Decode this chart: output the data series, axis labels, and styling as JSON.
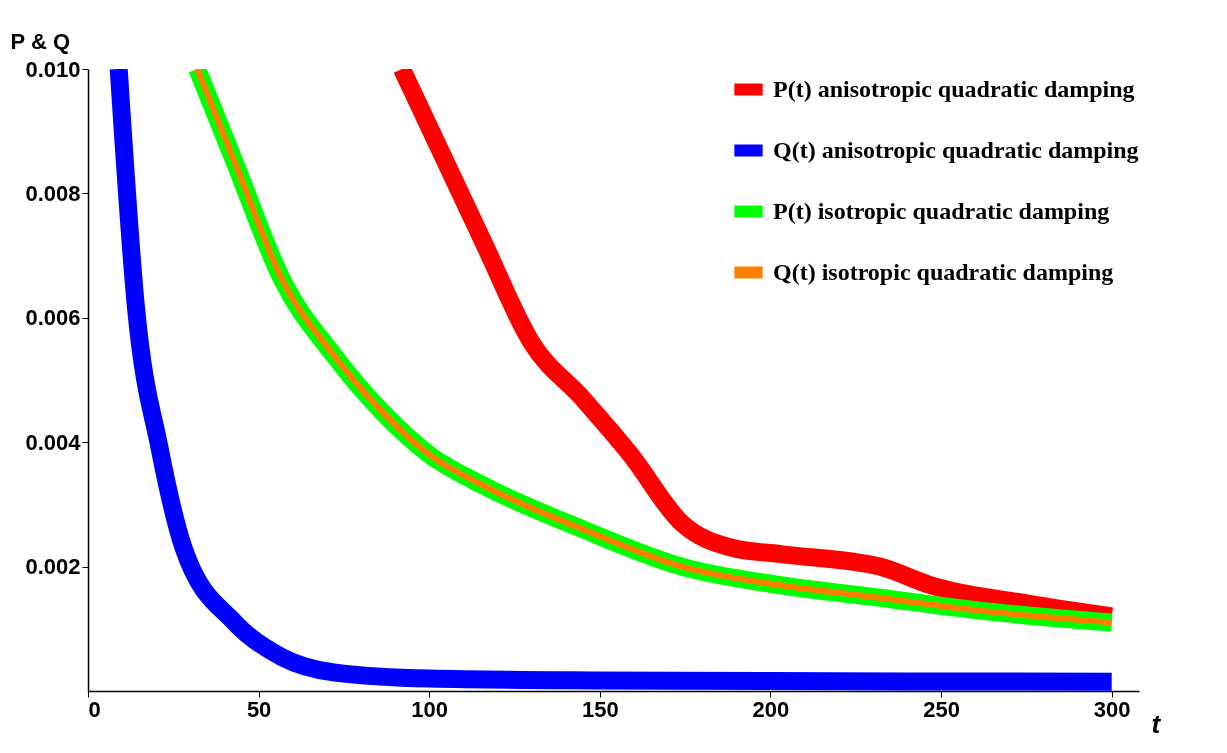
{
  "chart_data": {
    "type": "line",
    "xlabel": "t",
    "ylabel": "P & Q",
    "xlim": [
      0,
      308
    ],
    "ylim": [
      0,
      0.01
    ],
    "xticks": [
      0,
      50,
      100,
      150,
      200,
      250,
      300
    ],
    "yticks": [
      0.002,
      0.004,
      0.006,
      0.008,
      {
        "value": 0.01,
        "label": "0.010"
      }
    ],
    "grid": false,
    "legend": "top right",
    "series": [
      {
        "name": "P(t) anisotropic quadratic damping",
        "color": "#ff0000",
        "x": [
          92,
          116,
          130,
          145,
          159,
          174,
          189,
          203,
          232,
          247,
          276,
          300
        ],
        "values": [
          0.01,
          0.0072,
          0.0056,
          0.0047,
          0.0038,
          0.0027,
          0.0023,
          0.0022,
          0.002,
          0.0017,
          0.0014,
          0.0012
        ]
      },
      {
        "name": "Q(t) anisotropic quadratic damping",
        "color": "#0000ff",
        "x": [
          9,
          14,
          21,
          28,
          43,
          57,
          72,
          100,
          150,
          200,
          300
        ],
        "values": [
          0.01,
          0.0062,
          0.0039,
          0.0023,
          0.0011,
          0.00054,
          0.0003,
          0.0002,
          0.00017,
          0.00016,
          0.00015
        ]
      },
      {
        "name": "P(t) isotropic quadratic damping",
        "color": "#00ff00",
        "x": [
          32,
          43,
          57,
          72,
          86,
          100,
          116,
          145,
          174,
          203,
          232,
          260,
          300
        ],
        "values": [
          0.01,
          0.0085,
          0.0066,
          0.0054,
          0.0045,
          0.0038,
          0.0033,
          0.0026,
          0.002,
          0.0017,
          0.0015,
          0.0013,
          0.0011
        ]
      },
      {
        "name": "Q(t) isotropic quadratic damping",
        "color": "#ff8000",
        "x": [
          32,
          43,
          57,
          72,
          86,
          100,
          116,
          145,
          174,
          203,
          232,
          260,
          300
        ],
        "values": [
          0.01,
          0.0085,
          0.0066,
          0.0054,
          0.0045,
          0.0038,
          0.0033,
          0.0026,
          0.002,
          0.0017,
          0.0015,
          0.0013,
          0.0011
        ]
      }
    ]
  }
}
